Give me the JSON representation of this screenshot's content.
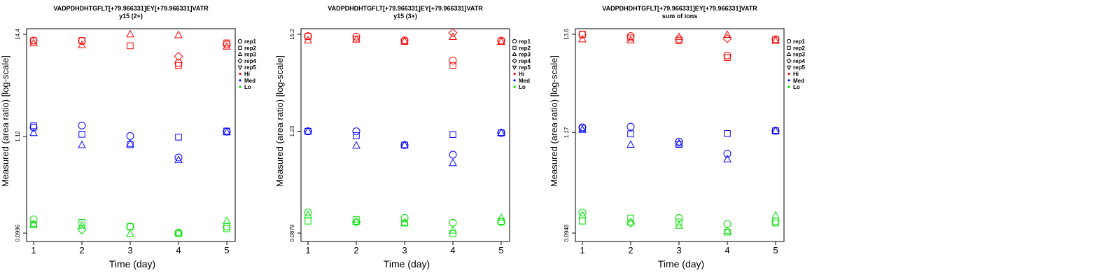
{
  "colors": {
    "Hi": "#ff0000",
    "Med": "#0000ff",
    "Lo": "#00e000"
  },
  "legend": {
    "reps": [
      {
        "label": "rep1",
        "symbol": "circle"
      },
      {
        "label": "rep2",
        "symbol": "square"
      },
      {
        "label": "rep3",
        "symbol": "triangle-up"
      },
      {
        "label": "rep4",
        "symbol": "diamond"
      },
      {
        "label": "rep5",
        "symbol": "triangle-down"
      }
    ],
    "levels": [
      "Hi",
      "Med",
      "Lo"
    ],
    "placement": "right"
  },
  "chart_data": [
    {
      "type": "scatter",
      "title": "VADPDHDHTGFLT[+79.966331]EY[+79.966331]VATR",
      "subtitle": "y15 (2+)",
      "xlabel": "Time (day)",
      "ylabel": "Measured (area ratio) [log-scale]",
      "yscale": "log",
      "x": [
        1,
        2,
        3,
        4,
        5
      ],
      "ylim": [
        0.0996,
        14.4
      ],
      "yticks": [
        {
          "value": 0.0996,
          "label": "0.0996"
        },
        {
          "value": 1.12,
          "label": "1.12"
        },
        {
          "value": 14.4,
          "label": "14.4"
        }
      ],
      "points": [
        {
          "level": "Hi",
          "rep": "rep1",
          "x": 1,
          "y": 12.3
        },
        {
          "level": "Hi",
          "rep": "rep2",
          "x": 1,
          "y": 12.2
        },
        {
          "level": "Hi",
          "rep": "rep3",
          "x": 1,
          "y": 11.5
        },
        {
          "level": "Hi",
          "rep": "rep1",
          "x": 2,
          "y": 12.2
        },
        {
          "level": "Hi",
          "rep": "rep2",
          "x": 2,
          "y": 12.3
        },
        {
          "level": "Hi",
          "rep": "rep3",
          "x": 2,
          "y": 11.0
        },
        {
          "level": "Hi",
          "rep": "rep2",
          "x": 3,
          "y": 10.8
        },
        {
          "level": "Hi",
          "rep": "rep3",
          "x": 3,
          "y": 14.4
        },
        {
          "level": "Hi",
          "rep": "rep1",
          "x": 4,
          "y": 7.0
        },
        {
          "level": "Hi",
          "rep": "rep2",
          "x": 4,
          "y": 6.6
        },
        {
          "level": "Hi",
          "rep": "rep3",
          "x": 4,
          "y": 14.1
        },
        {
          "level": "Hi",
          "rep": "rep4",
          "x": 4,
          "y": 8.3
        },
        {
          "level": "Hi",
          "rep": "rep1",
          "x": 5,
          "y": 11.2
        },
        {
          "level": "Hi",
          "rep": "rep2",
          "x": 5,
          "y": 11.6
        },
        {
          "level": "Hi",
          "rep": "rep3",
          "x": 5,
          "y": 10.6
        },
        {
          "level": "Med",
          "rep": "rep1",
          "x": 1,
          "y": 1.4
        },
        {
          "level": "Med",
          "rep": "rep2",
          "x": 1,
          "y": 1.46
        },
        {
          "level": "Med",
          "rep": "rep3",
          "x": 1,
          "y": 1.22
        },
        {
          "level": "Med",
          "rep": "rep1",
          "x": 2,
          "y": 1.47
        },
        {
          "level": "Med",
          "rep": "rep2",
          "x": 2,
          "y": 1.18
        },
        {
          "level": "Med",
          "rep": "rep3",
          "x": 2,
          "y": 0.9
        },
        {
          "level": "Med",
          "rep": "rep1",
          "x": 3,
          "y": 1.13
        },
        {
          "level": "Med",
          "rep": "rep2",
          "x": 3,
          "y": 0.91
        },
        {
          "level": "Med",
          "rep": "rep3",
          "x": 3,
          "y": 0.93
        },
        {
          "level": "Med",
          "rep": "rep1",
          "x": 4,
          "y": 0.66
        },
        {
          "level": "Med",
          "rep": "rep2",
          "x": 4,
          "y": 1.1
        },
        {
          "level": "Med",
          "rep": "rep3",
          "x": 4,
          "y": 0.62
        },
        {
          "level": "Med",
          "rep": "rep1",
          "x": 5,
          "y": 1.26
        },
        {
          "level": "Med",
          "rep": "rep2",
          "x": 5,
          "y": 1.28
        },
        {
          "level": "Med",
          "rep": "rep3",
          "x": 5,
          "y": 1.24
        },
        {
          "level": "Lo",
          "rep": "rep1",
          "x": 1,
          "y": 0.14
        },
        {
          "level": "Lo",
          "rep": "rep2",
          "x": 1,
          "y": 0.123
        },
        {
          "level": "Lo",
          "rep": "rep3",
          "x": 1,
          "y": 0.125
        },
        {
          "level": "Lo",
          "rep": "rep2",
          "x": 2,
          "y": 0.13
        },
        {
          "level": "Lo",
          "rep": "rep3",
          "x": 2,
          "y": 0.12
        },
        {
          "level": "Lo",
          "rep": "rep4",
          "x": 2,
          "y": 0.108
        },
        {
          "level": "Lo",
          "rep": "rep1",
          "x": 3,
          "y": 0.117
        },
        {
          "level": "Lo",
          "rep": "rep2",
          "x": 3,
          "y": 0.117
        },
        {
          "level": "Lo",
          "rep": "rep3",
          "x": 3,
          "y": 0.098
        },
        {
          "level": "Lo",
          "rep": "rep1",
          "x": 4,
          "y": 0.1
        },
        {
          "level": "Lo",
          "rep": "rep2",
          "x": 4,
          "y": 0.099
        },
        {
          "level": "Lo",
          "rep": "rep3",
          "x": 4,
          "y": 0.101
        },
        {
          "level": "Lo",
          "rep": "rep1",
          "x": 5,
          "y": 0.117
        },
        {
          "level": "Lo",
          "rep": "rep2",
          "x": 5,
          "y": 0.111
        },
        {
          "level": "Lo",
          "rep": "rep3",
          "x": 5,
          "y": 0.135
        }
      ]
    },
    {
      "type": "scatter",
      "title": "VADPDHDHTGFLT[+79.966331]EY[+79.966331]VATR",
      "subtitle": "y15 (3+)",
      "xlabel": "Time (day)",
      "ylabel": "Measured (area ratio) [log-scale]",
      "yscale": "log",
      "x": [
        1,
        2,
        3,
        4,
        5
      ],
      "ylim": [
        0.0879,
        15.2
      ],
      "yticks": [
        {
          "value": 0.0879,
          "label": "0.0879"
        },
        {
          "value": 1.23,
          "label": "1.23"
        },
        {
          "value": 15.2,
          "label": "15.2"
        }
      ],
      "points": [
        {
          "level": "Hi",
          "rep": "rep1",
          "x": 1,
          "y": 14.5
        },
        {
          "level": "Hi",
          "rep": "rep2",
          "x": 1,
          "y": 14.4
        },
        {
          "level": "Hi",
          "rep": "rep3",
          "x": 1,
          "y": 13.0
        },
        {
          "level": "Hi",
          "rep": "rep1",
          "x": 2,
          "y": 14.3
        },
        {
          "level": "Hi",
          "rep": "rep2",
          "x": 2,
          "y": 13.4
        },
        {
          "level": "Hi",
          "rep": "rep3",
          "x": 2,
          "y": 13.3
        },
        {
          "level": "Hi",
          "rep": "rep1",
          "x": 3,
          "y": 13.0
        },
        {
          "level": "Hi",
          "rep": "rep2",
          "x": 3,
          "y": 12.6
        },
        {
          "level": "Hi",
          "rep": "rep3",
          "x": 3,
          "y": 12.8
        },
        {
          "level": "Hi",
          "rep": "rep1",
          "x": 4,
          "y": 7.7
        },
        {
          "level": "Hi",
          "rep": "rep2",
          "x": 4,
          "y": 6.8
        },
        {
          "level": "Hi",
          "rep": "rep3",
          "x": 4,
          "y": 14.2
        },
        {
          "level": "Hi",
          "rep": "rep4",
          "x": 4,
          "y": 15.8
        },
        {
          "level": "Hi",
          "rep": "rep1",
          "x": 5,
          "y": 12.9
        },
        {
          "level": "Hi",
          "rep": "rep2",
          "x": 5,
          "y": 12.7
        },
        {
          "level": "Hi",
          "rep": "rep3",
          "x": 5,
          "y": 12.5
        },
        {
          "level": "Med",
          "rep": "rep1",
          "x": 1,
          "y": 1.23
        },
        {
          "level": "Med",
          "rep": "rep2",
          "x": 1,
          "y": 1.23
        },
        {
          "level": "Med",
          "rep": "rep3",
          "x": 1,
          "y": 1.23
        },
        {
          "level": "Med",
          "rep": "rep1",
          "x": 2,
          "y": 1.23
        },
        {
          "level": "Med",
          "rep": "rep2",
          "x": 2,
          "y": 1.1
        },
        {
          "level": "Med",
          "rep": "rep3",
          "x": 2,
          "y": 0.85
        },
        {
          "level": "Med",
          "rep": "rep1",
          "x": 3,
          "y": 0.86
        },
        {
          "level": "Med",
          "rep": "rep2",
          "x": 3,
          "y": 0.86
        },
        {
          "level": "Med",
          "rep": "rep3",
          "x": 3,
          "y": 0.86
        },
        {
          "level": "Med",
          "rep": "rep1",
          "x": 4,
          "y": 0.67
        },
        {
          "level": "Med",
          "rep": "rep2",
          "x": 4,
          "y": 1.13
        },
        {
          "level": "Med",
          "rep": "rep3",
          "x": 4,
          "y": 0.54
        },
        {
          "level": "Med",
          "rep": "rep1",
          "x": 5,
          "y": 1.18
        },
        {
          "level": "Med",
          "rep": "rep2",
          "x": 5,
          "y": 1.18
        },
        {
          "level": "Med",
          "rep": "rep3",
          "x": 5,
          "y": 1.18
        },
        {
          "level": "Lo",
          "rep": "rep1",
          "x": 1,
          "y": 0.15
        },
        {
          "level": "Lo",
          "rep": "rep2",
          "x": 1,
          "y": 0.12
        },
        {
          "level": "Lo",
          "rep": "rep3",
          "x": 1,
          "y": 0.14
        },
        {
          "level": "Lo",
          "rep": "rep2",
          "x": 2,
          "y": 0.125
        },
        {
          "level": "Lo",
          "rep": "rep3",
          "x": 2,
          "y": 0.118
        },
        {
          "level": "Lo",
          "rep": "rep4",
          "x": 2,
          "y": 0.117
        },
        {
          "level": "Lo",
          "rep": "rep1",
          "x": 3,
          "y": 0.13
        },
        {
          "level": "Lo",
          "rep": "rep2",
          "x": 3,
          "y": 0.114
        },
        {
          "level": "Lo",
          "rep": "rep3",
          "x": 3,
          "y": 0.116
        },
        {
          "level": "Lo",
          "rep": "rep1",
          "x": 4,
          "y": 0.115
        },
        {
          "level": "Lo",
          "rep": "rep2",
          "x": 4,
          "y": 0.087
        },
        {
          "level": "Lo",
          "rep": "rep3",
          "x": 4,
          "y": 0.094
        },
        {
          "level": "Lo",
          "rep": "rep1",
          "x": 5,
          "y": 0.117
        },
        {
          "level": "Lo",
          "rep": "rep2",
          "x": 5,
          "y": 0.119
        },
        {
          "level": "Lo",
          "rep": "rep3",
          "x": 5,
          "y": 0.13
        }
      ]
    },
    {
      "type": "scatter",
      "title": "VADPDHDHTGFLT[+79.966331]EY[+79.966331]VATR",
      "subtitle": "sum of ions",
      "xlabel": "Time (day)",
      "ylabel": "Measured (area ratio) [log-scale]",
      "yscale": "log",
      "x": [
        1,
        2,
        3,
        4,
        5
      ],
      "ylim": [
        0.0948,
        13.6
      ],
      "yticks": [
        {
          "value": 0.0948,
          "label": "0.0948"
        },
        {
          "value": 1.17,
          "label": "1.17"
        },
        {
          "value": 13.6,
          "label": "13.6"
        }
      ],
      "points": [
        {
          "level": "Hi",
          "rep": "rep1",
          "x": 1,
          "y": 13.5
        },
        {
          "level": "Hi",
          "rep": "rep2",
          "x": 1,
          "y": 13.6
        },
        {
          "level": "Hi",
          "rep": "rep3",
          "x": 1,
          "y": 12.0
        },
        {
          "level": "Hi",
          "rep": "rep1",
          "x": 2,
          "y": 13.0
        },
        {
          "level": "Hi",
          "rep": "rep2",
          "x": 2,
          "y": 12.4
        },
        {
          "level": "Hi",
          "rep": "rep3",
          "x": 2,
          "y": 11.7
        },
        {
          "level": "Hi",
          "rep": "rep1",
          "x": 3,
          "y": 12.0
        },
        {
          "level": "Hi",
          "rep": "rep2",
          "x": 3,
          "y": 11.6
        },
        {
          "level": "Hi",
          "rep": "rep3",
          "x": 3,
          "y": 12.7
        },
        {
          "level": "Hi",
          "rep": "rep1",
          "x": 4,
          "y": 8.0
        },
        {
          "level": "Hi",
          "rep": "rep2",
          "x": 4,
          "y": 7.6
        },
        {
          "level": "Hi",
          "rep": "rep3",
          "x": 4,
          "y": 13.4
        },
        {
          "level": "Hi",
          "rep": "rep4",
          "x": 4,
          "y": 12.2
        },
        {
          "level": "Hi",
          "rep": "rep1",
          "x": 5,
          "y": 12.0
        },
        {
          "level": "Hi",
          "rep": "rep2",
          "x": 5,
          "y": 11.8
        },
        {
          "level": "Hi",
          "rep": "rep3",
          "x": 5,
          "y": 11.6
        },
        {
          "level": "Med",
          "rep": "rep1",
          "x": 1,
          "y": 1.33
        },
        {
          "level": "Med",
          "rep": "rep2",
          "x": 1,
          "y": 1.3
        },
        {
          "level": "Med",
          "rep": "rep3",
          "x": 1,
          "y": 1.25
        },
        {
          "level": "Med",
          "rep": "rep1",
          "x": 2,
          "y": 1.35
        },
        {
          "level": "Med",
          "rep": "rep2",
          "x": 2,
          "y": 1.13
        },
        {
          "level": "Med",
          "rep": "rep3",
          "x": 2,
          "y": 0.86
        },
        {
          "level": "Med",
          "rep": "rep1",
          "x": 3,
          "y": 0.93
        },
        {
          "level": "Med",
          "rep": "rep2",
          "x": 3,
          "y": 0.87
        },
        {
          "level": "Med",
          "rep": "rep3",
          "x": 3,
          "y": 0.89
        },
        {
          "level": "Med",
          "rep": "rep1",
          "x": 4,
          "y": 0.69
        },
        {
          "level": "Med",
          "rep": "rep2",
          "x": 4,
          "y": 1.14
        },
        {
          "level": "Med",
          "rep": "rep3",
          "x": 4,
          "y": 0.6
        },
        {
          "level": "Med",
          "rep": "rep1",
          "x": 5,
          "y": 1.22
        },
        {
          "level": "Med",
          "rep": "rep2",
          "x": 5,
          "y": 1.22
        },
        {
          "level": "Med",
          "rep": "rep3",
          "x": 5,
          "y": 1.22
        },
        {
          "level": "Lo",
          "rep": "rep1",
          "x": 1,
          "y": 0.158
        },
        {
          "level": "Lo",
          "rep": "rep2",
          "x": 1,
          "y": 0.128
        },
        {
          "level": "Lo",
          "rep": "rep3",
          "x": 1,
          "y": 0.148
        },
        {
          "level": "Lo",
          "rep": "rep2",
          "x": 2,
          "y": 0.138
        },
        {
          "level": "Lo",
          "rep": "rep3",
          "x": 2,
          "y": 0.124
        },
        {
          "level": "Lo",
          "rep": "rep4",
          "x": 2,
          "y": 0.122
        },
        {
          "level": "Lo",
          "rep": "rep1",
          "x": 3,
          "y": 0.138
        },
        {
          "level": "Lo",
          "rep": "rep2",
          "x": 3,
          "y": 0.125
        },
        {
          "level": "Lo",
          "rep": "rep3",
          "x": 3,
          "y": 0.114
        },
        {
          "level": "Lo",
          "rep": "rep1",
          "x": 4,
          "y": 0.119
        },
        {
          "level": "Lo",
          "rep": "rep2",
          "x": 4,
          "y": 0.097
        },
        {
          "level": "Lo",
          "rep": "rep3",
          "x": 4,
          "y": 0.1
        },
        {
          "level": "Lo",
          "rep": "rep1",
          "x": 5,
          "y": 0.127
        },
        {
          "level": "Lo",
          "rep": "rep2",
          "x": 5,
          "y": 0.122
        },
        {
          "level": "Lo",
          "rep": "rep3",
          "x": 5,
          "y": 0.147
        }
      ]
    }
  ]
}
